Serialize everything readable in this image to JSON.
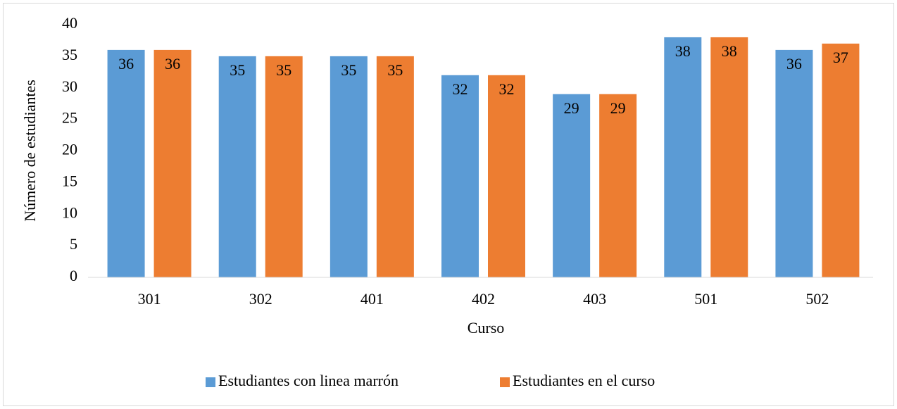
{
  "chart_data": {
    "type": "bar",
    "categories": [
      "301",
      "302",
      "401",
      "402",
      "403",
      "501",
      "502"
    ],
    "series": [
      {
        "name": "Estudiantes con linea marrón",
        "color": "#5b9bd5",
        "values": [
          36,
          35,
          35,
          32,
          29,
          38,
          36
        ]
      },
      {
        "name": "Estudiantes en el curso",
        "color": "#ed7d31",
        "values": [
          36,
          35,
          35,
          32,
          29,
          38,
          37
        ]
      }
    ],
    "x_label": "Curso",
    "y_label": "Número de estudiantes",
    "ylim": [
      0,
      40
    ],
    "yticks": [
      0,
      5,
      10,
      15,
      20,
      25,
      30,
      35,
      40
    ],
    "grid": false,
    "legend": "bottom"
  }
}
